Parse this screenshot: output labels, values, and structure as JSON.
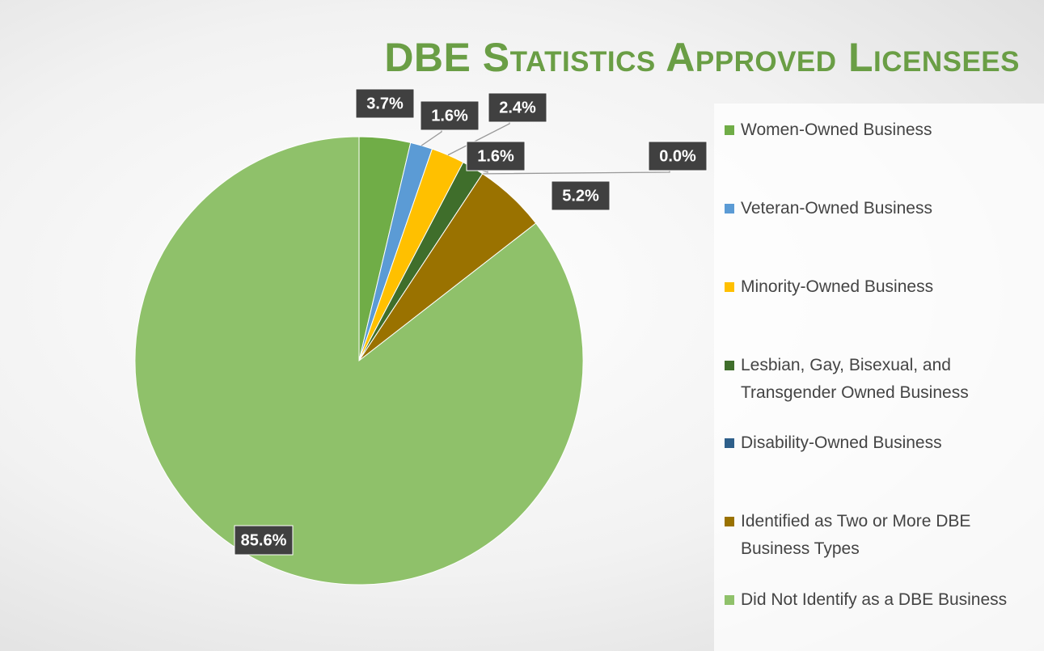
{
  "chart_data": {
    "type": "pie",
    "title": "DBE Statistics Approved Licensees",
    "categories": [
      "Women-Owned Business",
      "Veteran-Owned Business",
      "Minority-Owned Business",
      "Lesbian, Gay, Bisexual, and Transgender Owned Business",
      "Disability-Owned Business",
      "Identified as Two or More DBE Business Types",
      "Did Not Identify as a DBE Business"
    ],
    "values": [
      3.7,
      1.6,
      2.4,
      1.6,
      0.0,
      5.2,
      85.6
    ],
    "value_labels": [
      "3.7%",
      "1.6%",
      "2.4%",
      "1.6%",
      "0.0%",
      "5.2%",
      "85.6%"
    ],
    "colors": [
      "#70ad47",
      "#5b9bd5",
      "#ffc000",
      "#3f6e2b",
      "#2e5f8a",
      "#9a7200",
      "#8fc16a"
    ],
    "legend": "right"
  }
}
